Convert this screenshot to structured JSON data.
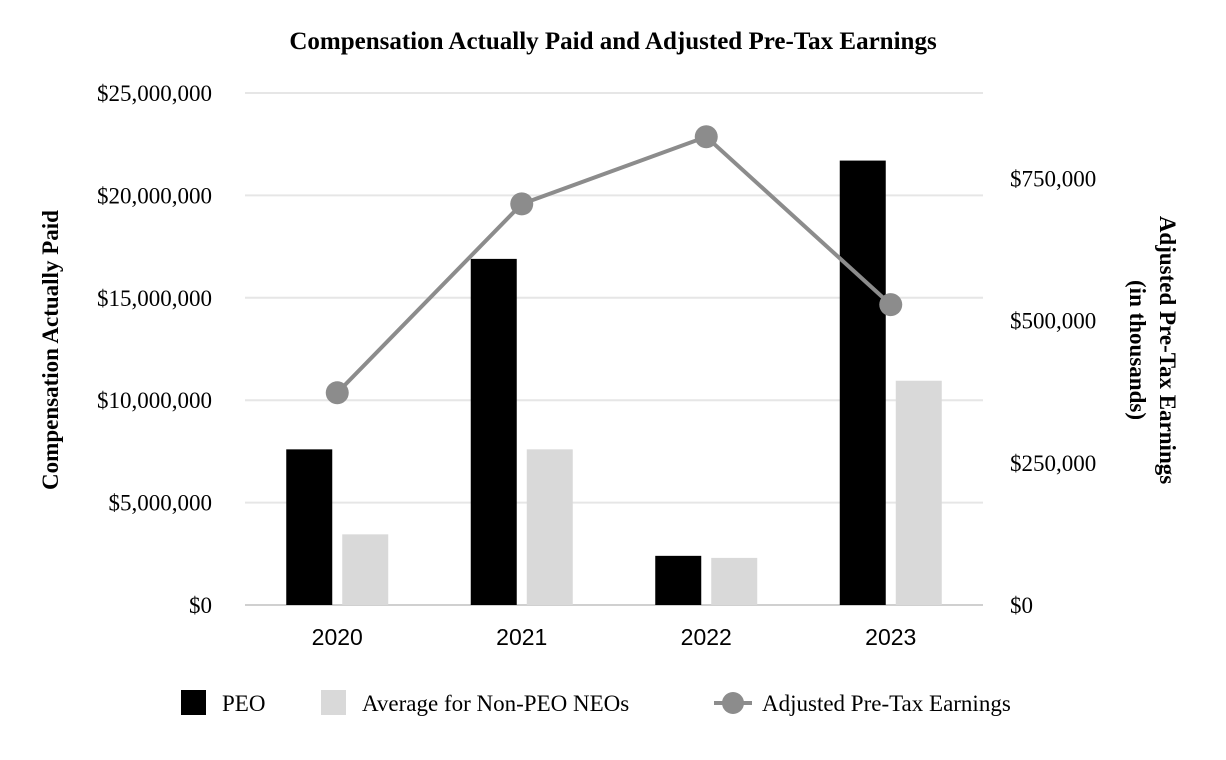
{
  "chart_data": {
    "type": "bar",
    "title": "Compensation Actually Paid and Adjusted Pre-Tax Earnings",
    "categories": [
      "2020",
      "2021",
      "2022",
      "2023"
    ],
    "series": [
      {
        "name": "PEO",
        "kind": "bar",
        "axis": "left",
        "color": "#000000",
        "values": [
          7600000,
          16900000,
          2400000,
          21700000
        ]
      },
      {
        "name": "Average for Non-PEO NEOs",
        "kind": "bar",
        "axis": "left",
        "color": "#d9d9d9",
        "values": [
          3450000,
          7600000,
          2300000,
          10950000
        ]
      },
      {
        "name": "Adjusted Pre-Tax Earnings",
        "kind": "line",
        "axis": "right",
        "color": "#8c8c8c",
        "values": [
          373000,
          705000,
          823000,
          528000
        ]
      }
    ],
    "ylabel": "Compensation Actually Paid",
    "ylim": [
      0,
      25000000
    ],
    "yticks": [
      0,
      5000000,
      10000000,
      15000000,
      20000000,
      25000000
    ],
    "ytick_labels": [
      "$0",
      "$5,000,000",
      "$10,000,000",
      "$15,000,000",
      "$20,000,000",
      "$25,000,000"
    ],
    "y2label_lines": [
      "Adjusted Pre-Tax Earnings",
      "(in thousands)"
    ],
    "y2lim": [
      0,
      900000
    ],
    "y2ticks": [
      0,
      250000,
      500000,
      750000
    ],
    "y2tick_labels": [
      "$0",
      "$250,000",
      "$500,000",
      "$750,000"
    ],
    "grid": true,
    "legend_position": "bottom"
  }
}
